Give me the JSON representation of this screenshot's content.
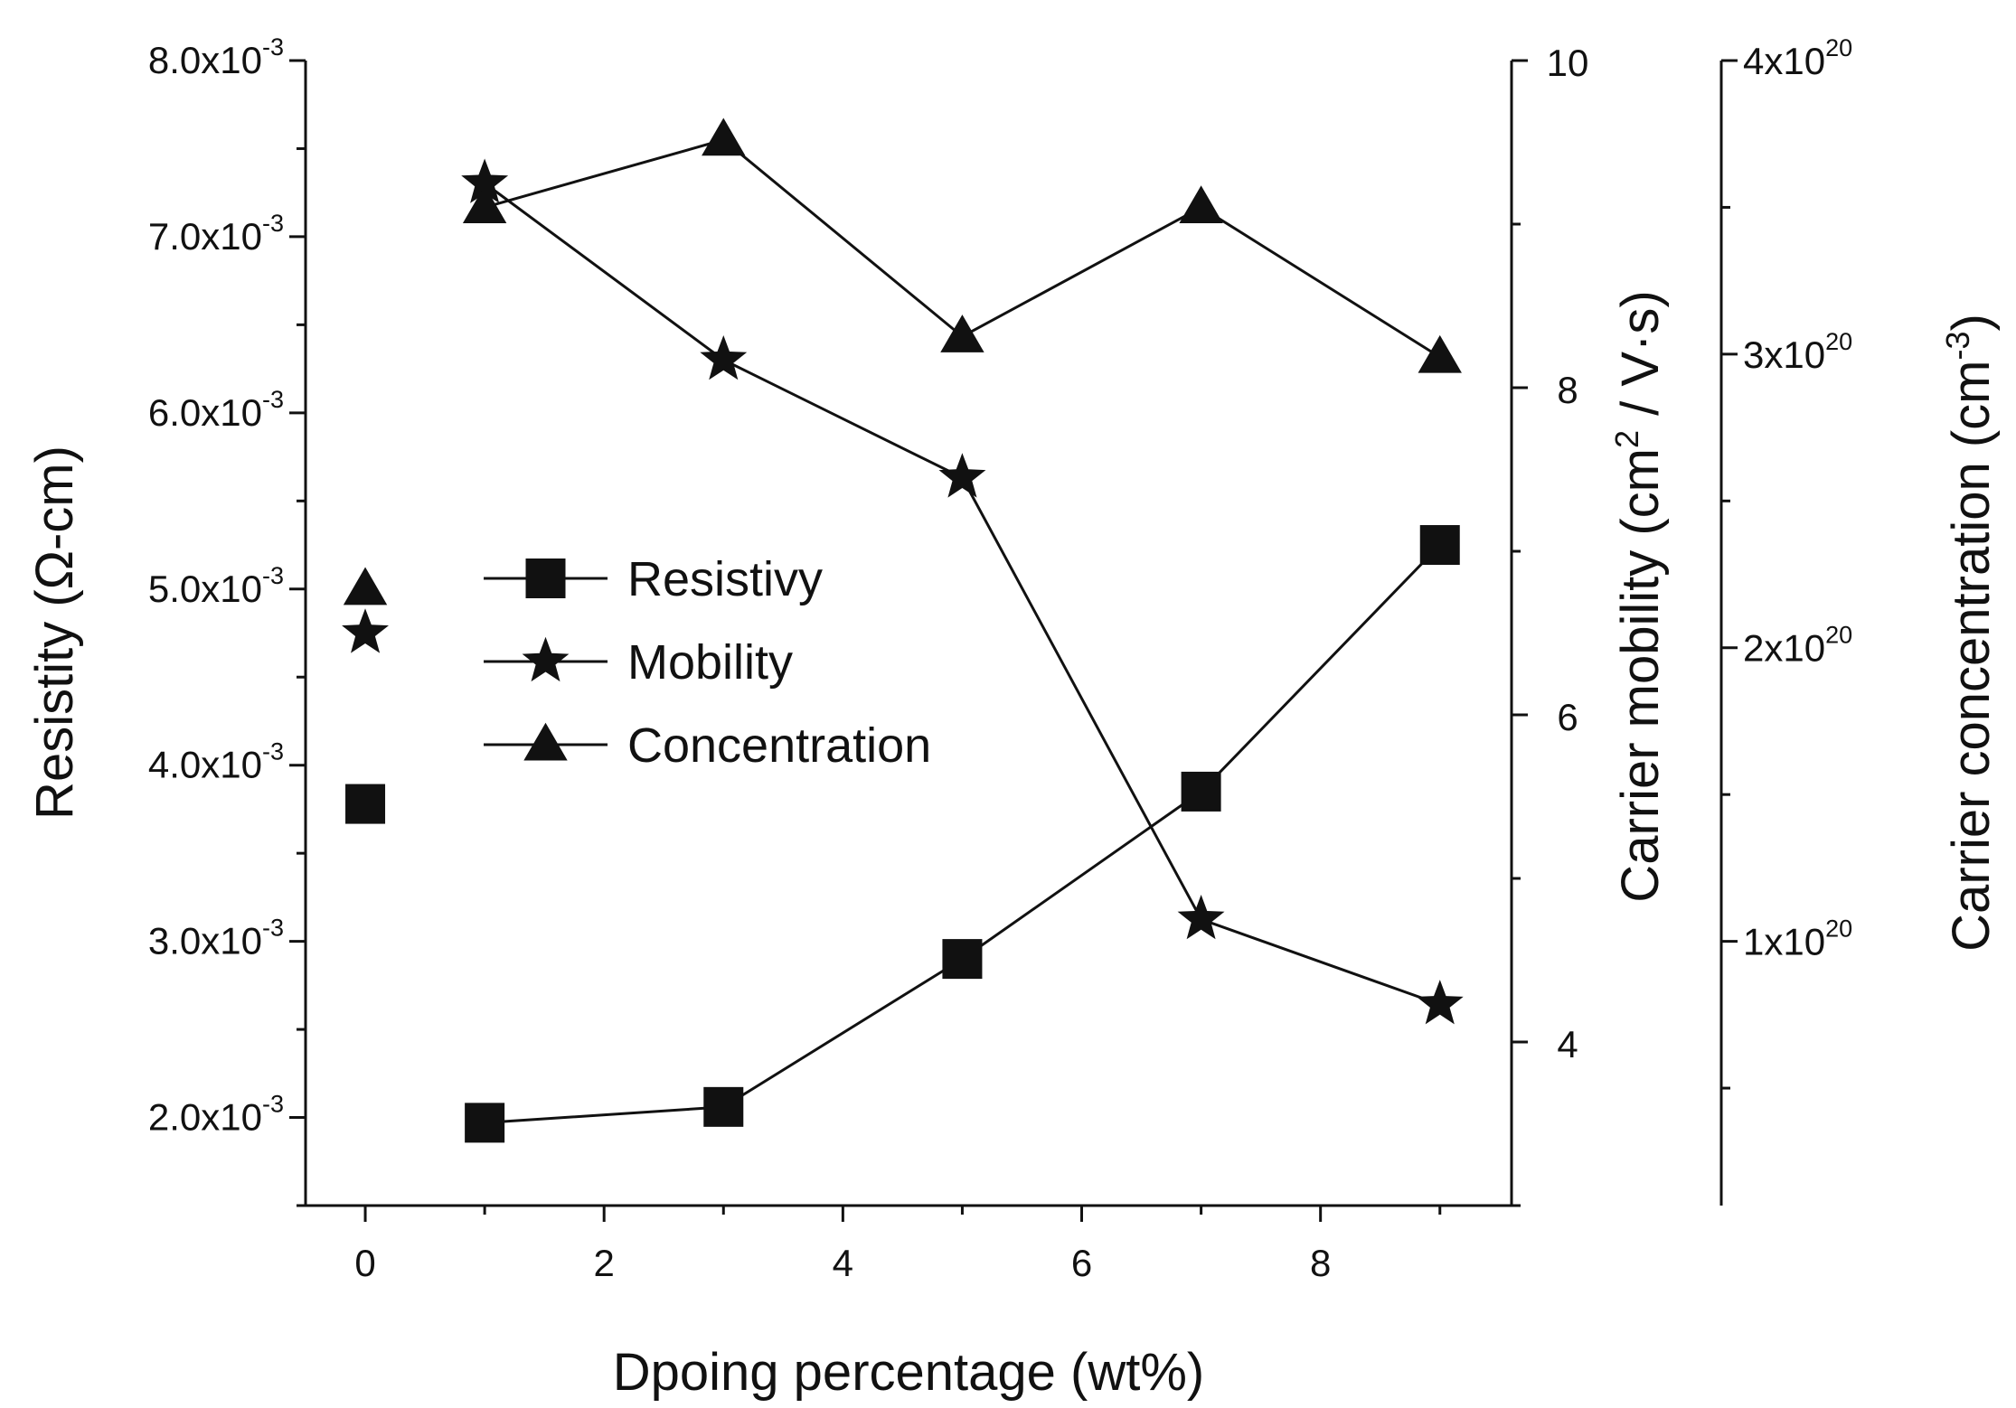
{
  "chart_data": {
    "type": "line",
    "xlabel": "Dpoing percentage (wt%)",
    "x_ticks": [
      "0",
      "2",
      "4",
      "6",
      "8"
    ],
    "xlim": [
      -0.5,
      9.6
    ],
    "y_axes": {
      "left": {
        "label_main": "Resistity (",
        "label_symbol": "Ω",
        "label_tail": "-cm)",
        "ylim": [
          0.0015,
          0.008
        ],
        "ticks": [
          {
            "value": 0.002,
            "mantissa": "2.0x10",
            "exp": "-3"
          },
          {
            "value": 0.003,
            "mantissa": "3.0x10",
            "exp": "-3"
          },
          {
            "value": 0.004,
            "mantissa": "4.0x10",
            "exp": "-3"
          },
          {
            "value": 0.005,
            "mantissa": "5.0x10",
            "exp": "-3"
          },
          {
            "value": 0.006,
            "mantissa": "6.0x10",
            "exp": "-3"
          },
          {
            "value": 0.007,
            "mantissa": "7.0x10",
            "exp": "-3"
          },
          {
            "value": 0.008,
            "mantissa": "8.0x10",
            "exp": "-3"
          }
        ]
      },
      "right1": {
        "label_main": "Carrier mobility (cm",
        "label_sup": "2",
        "label_tail": " / V·s)",
        "ylim": [
          3.0,
          10.0
        ],
        "ticks": [
          {
            "value": 4,
            "text": "4"
          },
          {
            "value": 6,
            "text": "6"
          },
          {
            "value": 8,
            "text": "8"
          },
          {
            "value": 10,
            "text": "10"
          }
        ],
        "minor_ticks": [
          3,
          5,
          7,
          9
        ]
      },
      "right2": {
        "label_main": "Carrier concentration (cm",
        "label_sup": "-3",
        "label_tail": ")",
        "ylim": [
          1e+19,
          4e+20
        ],
        "ticks": [
          {
            "value": 1e+20,
            "mantissa": "1x10",
            "exp": "20"
          },
          {
            "value": 2e+20,
            "mantissa": "2x10",
            "exp": "20"
          },
          {
            "value": 3e+20,
            "mantissa": "3x10",
            "exp": "20"
          },
          {
            "value": 4e+20,
            "mantissa": "4x10",
            "exp": "20"
          }
        ],
        "minor_ticks": [
          5e+19,
          1.5e+20,
          2.5e+20,
          3.5e+20
        ]
      }
    },
    "series": [
      {
        "name": "Resistivy",
        "marker": "square",
        "axis": "left",
        "x": [
          0,
          1,
          3,
          5,
          7,
          9
        ],
        "y": [
          0.00378,
          0.00197,
          0.00206,
          0.0029,
          0.00385,
          0.00525
        ],
        "connected_from_index": 1
      },
      {
        "name": "Mobility",
        "marker": "star",
        "axis": "right1",
        "x": [
          0,
          1,
          3,
          5,
          7,
          9
        ],
        "y": [
          6.5,
          9.25,
          8.17,
          7.45,
          4.75,
          4.23
        ],
        "connected_from_index": 1
      },
      {
        "name": "Concentration",
        "marker": "triangle",
        "axis": "right2",
        "x": [
          0,
          1,
          3,
          5,
          7,
          9
        ],
        "y": [
          2.2e+20,
          3.5e+20,
          3.73e+20,
          3.06e+20,
          3.5e+20,
          2.99e+20
        ],
        "connected_from_index": 1
      }
    ],
    "legend": {
      "position": "center-left"
    },
    "grid": false,
    "colors": {
      "ink": "#111111",
      "background": "#ffffff"
    }
  }
}
